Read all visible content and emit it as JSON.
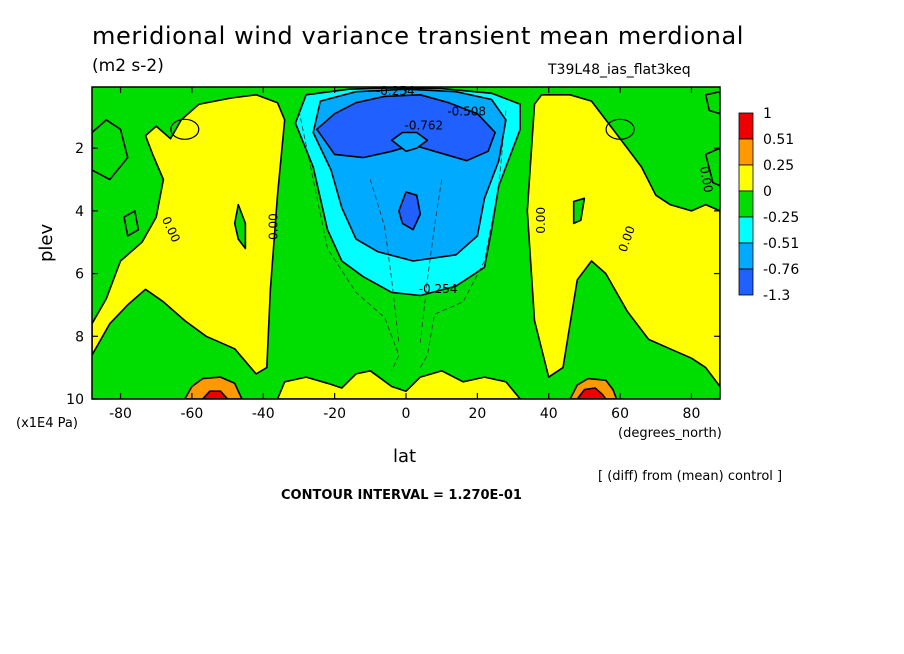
{
  "chart_data": {
    "type": "heatmap",
    "title": "meridional wind variance transient mean merdional",
    "units": "(m2 s-2)",
    "run_label": "T39L48_ias_flat3keq",
    "diff_note": "[ (diff) from (mean) control ]",
    "contour_interval": "CONTOUR INTERVAL = 1.270E-01",
    "xlabel": "lat",
    "xunit": "(degrees_north)",
    "ylabel": "plev",
    "yunit": "(x1E4 Pa)",
    "xlim": [
      -88,
      88
    ],
    "ylim": [
      10,
      0.05
    ],
    "x_ticks": [
      -80,
      -60,
      -40,
      -20,
      0,
      20,
      40,
      60,
      80
    ],
    "x_tick_labels": [
      "-80",
      "-60",
      "-40",
      "-20",
      "0",
      "20",
      "40",
      "60",
      "80"
    ],
    "y_ticks": [
      2,
      4,
      6,
      8,
      10
    ],
    "y_tick_labels": [
      "2",
      "4",
      "6",
      "8",
      "10"
    ],
    "legend": {
      "labels": [
        "1",
        "0.51",
        "0.25",
        "0",
        "-0.25",
        "-0.51",
        "-0.76",
        "-1.3"
      ],
      "colors": [
        "#ee0000",
        "#ff9900",
        "#ffff00",
        "#00dd00",
        "#00ffff",
        "#00aaff",
        "#2060ff"
      ]
    },
    "contour_labels": [
      {
        "text": "-0.254",
        "x": -3,
        "y": 0.2
      },
      {
        "text": "-0.508",
        "x": 17,
        "y": 0.85
      },
      {
        "text": "-0.762",
        "x": 5,
        "y": 1.3
      },
      {
        "text": "-0.254",
        "x": 9,
        "y": 6.5
      },
      {
        "text": "0.00",
        "x": -66,
        "y": 4.6,
        "rot": 65
      },
      {
        "text": "0.00",
        "x": -37,
        "y": 4.5,
        "rot": -90
      },
      {
        "text": "0.00",
        "x": 38,
        "y": 4.3,
        "rot": -90
      },
      {
        "text": "0.00",
        "x": 62,
        "y": 4.9,
        "rot": -70
      },
      {
        "text": "0.00",
        "x": 84,
        "y": 3.0,
        "rot": 80
      }
    ],
    "regions": {
      "background": {
        "color": "#00dd00",
        "value_range": [
          -0.25,
          0
        ]
      },
      "sh_positive": {
        "color": "#ffff00",
        "value_range": [
          0,
          0.25
        ],
        "points": [
          [
            -88,
            7.6
          ],
          [
            -84,
            6.8
          ],
          [
            -80,
            5.6
          ],
          [
            -74,
            5.0
          ],
          [
            -70,
            4.2
          ],
          [
            -68,
            3.0
          ],
          [
            -71,
            2.2
          ],
          [
            -73,
            1.6
          ],
          [
            -70,
            1.3
          ],
          [
            -66,
            1.7
          ],
          [
            -63,
            1.1
          ],
          [
            -58,
            0.6
          ],
          [
            -49,
            0.4
          ],
          [
            -42,
            0.3
          ],
          [
            -36,
            0.55
          ],
          [
            -34,
            1.1
          ],
          [
            -36,
            3.5
          ],
          [
            -38,
            6.5
          ],
          [
            -39,
            9.0
          ],
          [
            -42,
            9.2
          ],
          [
            -48,
            8.4
          ],
          [
            -56,
            8.0
          ],
          [
            -62,
            7.5
          ],
          [
            -68,
            6.9
          ],
          [
            -73,
            6.5
          ],
          [
            -78,
            7.0
          ],
          [
            -83,
            7.6
          ],
          [
            -88,
            8.6
          ]
        ]
      },
      "nh_positive": {
        "color": "#ffff00",
        "value_range": [
          0,
          0.25
        ],
        "points": [
          [
            36,
            0.6
          ],
          [
            38,
            0.3
          ],
          [
            46,
            0.3
          ],
          [
            52,
            0.5
          ],
          [
            58,
            1.4
          ],
          [
            66,
            2.6
          ],
          [
            70,
            3.5
          ],
          [
            74,
            3.8
          ],
          [
            80,
            4.0
          ],
          [
            84,
            3.8
          ],
          [
            88,
            4.0
          ],
          [
            88,
            9.6
          ],
          [
            84,
            9.0
          ],
          [
            80,
            8.7
          ],
          [
            74,
            8.4
          ],
          [
            68,
            8.1
          ],
          [
            62,
            7.2
          ],
          [
            56,
            6.0
          ],
          [
            52,
            5.6
          ],
          [
            48,
            6.2
          ],
          [
            46,
            7.6
          ],
          [
            44,
            9.0
          ],
          [
            40,
            9.3
          ],
          [
            36,
            7.5
          ],
          [
            34,
            4.0
          ]
        ]
      },
      "sfc_bumps": {
        "color": "#ffff00",
        "value_range": [
          0,
          0.25
        ],
        "points": [
          [
            -36,
            10
          ],
          [
            -34,
            9.45
          ],
          [
            -28,
            9.3
          ],
          [
            -22,
            9.5
          ],
          [
            -18,
            9.65
          ],
          [
            -14,
            9.2
          ],
          [
            -10,
            9.1
          ],
          [
            -4,
            9.6
          ],
          [
            0,
            9.75
          ],
          [
            4,
            9.3
          ],
          [
            10,
            9.1
          ],
          [
            16,
            9.45
          ],
          [
            22,
            9.3
          ],
          [
            28,
            9.45
          ],
          [
            32,
            10
          ]
        ]
      },
      "sh_sfc_max": {
        "color": "#ff9900",
        "value_range": [
          0.25,
          0.51
        ],
        "points": [
          [
            -62,
            10
          ],
          [
            -60,
            9.6
          ],
          [
            -57,
            9.35
          ],
          [
            -52,
            9.3
          ],
          [
            -48,
            9.5
          ],
          [
            -46,
            10
          ]
        ]
      },
      "nh_sfc_max": {
        "color": "#ff9900",
        "value_range": [
          0.25,
          0.51
        ],
        "points": [
          [
            46,
            10
          ],
          [
            48,
            9.55
          ],
          [
            51,
            9.35
          ],
          [
            56,
            9.4
          ],
          [
            58,
            9.7
          ],
          [
            59,
            10
          ]
        ]
      },
      "nh_sfc_peak": {
        "color": "#ee0000",
        "value_range": [
          0.51,
          1
        ],
        "points": [
          [
            48,
            10
          ],
          [
            50,
            9.7
          ],
          [
            53,
            9.65
          ],
          [
            55,
            9.85
          ],
          [
            56,
            10
          ]
        ]
      },
      "sh_sfc_peak": {
        "color": "#ee0000",
        "value_range": [
          0.51,
          1
        ],
        "points": [
          [
            -57,
            10
          ],
          [
            -55,
            9.75
          ],
          [
            -52,
            9.75
          ],
          [
            -50,
            10
          ]
        ]
      },
      "trop_min_1": {
        "color": "#00ffff",
        "value_range": [
          -0.51,
          -0.25
        ],
        "points": [
          [
            -28,
            0.3
          ],
          [
            -16,
            0.12
          ],
          [
            -4,
            0.08
          ],
          [
            10,
            0.1
          ],
          [
            24,
            0.25
          ],
          [
            32,
            0.6
          ],
          [
            32,
            1.4
          ],
          [
            26,
            3.2
          ],
          [
            24,
            4.6
          ],
          [
            22,
            5.8
          ],
          [
            14,
            6.4
          ],
          [
            4,
            6.7
          ],
          [
            -4,
            6.6
          ],
          [
            -12,
            6.1
          ],
          [
            -18,
            5.6
          ],
          [
            -22,
            4.6
          ],
          [
            -26,
            2.6
          ],
          [
            -31,
            1.2
          ]
        ]
      },
      "trop_min_2": {
        "color": "#00aaff",
        "value_range": [
          -0.76,
          -0.51
        ],
        "points": [
          [
            -24,
            0.5
          ],
          [
            -14,
            0.2
          ],
          [
            0,
            0.12
          ],
          [
            14,
            0.2
          ],
          [
            24,
            0.45
          ],
          [
            28,
            1.1
          ],
          [
            26,
            2.4
          ],
          [
            22,
            3.6
          ],
          [
            20,
            4.8
          ],
          [
            14,
            5.4
          ],
          [
            2,
            5.6
          ],
          [
            -8,
            5.3
          ],
          [
            -14,
            4.9
          ],
          [
            -18,
            3.9
          ],
          [
            -21,
            2.7
          ],
          [
            -26,
            1.5
          ]
        ]
      },
      "trop_min_3": {
        "color": "#2060ff",
        "value_range": [
          -1.3,
          -0.76
        ],
        "points": [
          [
            -25,
            1.4
          ],
          [
            -20,
            0.9
          ],
          [
            -14,
            0.55
          ],
          [
            -6,
            0.35
          ],
          [
            4,
            0.3
          ],
          [
            12,
            0.55
          ],
          [
            20,
            0.9
          ],
          [
            25,
            1.5
          ],
          [
            23,
            2.1
          ],
          [
            17,
            2.4
          ],
          [
            8,
            2.1
          ],
          [
            2,
            1.9
          ],
          [
            -4,
            2.1
          ],
          [
            -12,
            2.3
          ],
          [
            -20,
            2.2
          ]
        ]
      },
      "core_blob": {
        "color": "#00aaff",
        "value_range": [
          -0.76,
          -0.51
        ],
        "points": [
          [
            -4,
            1.75
          ],
          [
            -1,
            1.5
          ],
          [
            3,
            1.5
          ],
          [
            6,
            1.75
          ],
          [
            3,
            2.0
          ],
          [
            0,
            2.1
          ]
        ]
      },
      "core_inner": {
        "color": "#2060ff",
        "value_range": [
          -1.3,
          -0.76
        ],
        "points": [
          [
            -2,
            4.0
          ],
          [
            0,
            3.4
          ],
          [
            3,
            3.5
          ],
          [
            4,
            4.1
          ],
          [
            2,
            4.6
          ],
          [
            -1,
            4.4
          ]
        ]
      },
      "sh_islands": [
        {
          "color": "#00dd00",
          "points": [
            [
              -88,
              1.5
            ],
            [
              -84,
              1.1
            ],
            [
              -80,
              1.4
            ],
            [
              -78,
              2.3
            ],
            [
              -83,
              3.0
            ],
            [
              -88,
              2.7
            ]
          ]
        },
        {
          "color": "#00dd00",
          "points": [
            [
              -47,
              3.8
            ],
            [
              -45,
              4.4
            ],
            [
              -45,
              5.2
            ],
            [
              -47,
              4.9
            ],
            [
              -48,
              4.4
            ]
          ]
        },
        {
          "color": "#00dd00",
          "points": [
            [
              -79,
              4.2
            ],
            [
              -76,
              4.0
            ],
            [
              -75,
              4.6
            ],
            [
              -78,
              4.8
            ]
          ]
        }
      ],
      "nh_islands": [
        {
          "color": "#00dd00",
          "points": [
            [
              47,
              3.7
            ],
            [
              50,
              3.6
            ],
            [
              49,
              4.3
            ],
            [
              47,
              4.4
            ]
          ]
        },
        {
          "color": "#00dd00",
          "points": [
            [
              84,
              2.2
            ],
            [
              88,
              2.0
            ],
            [
              88,
              3.2
            ],
            [
              86,
              3.1
            ]
          ]
        },
        {
          "color": "#00dd00",
          "points": [
            [
              84,
              0.3
            ],
            [
              88,
              0.2
            ],
            [
              88,
              0.9
            ],
            [
              85,
              0.8
            ]
          ]
        }
      ]
    }
  }
}
